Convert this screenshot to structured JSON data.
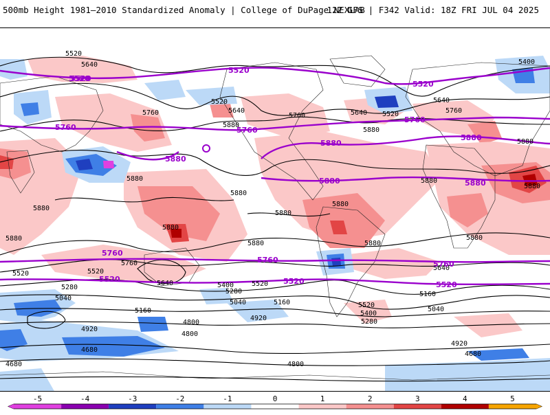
{
  "header": {
    "title_left": "500mb Height 1981–2010 Standardized Anomaly | College of DuPage NEXLAB",
    "title_right": "12Z GFS | F342 Valid: 18Z FRI JUL 04 2025"
  },
  "colors": {
    "neg5": "#e040e0",
    "neg4": "#8a00b0",
    "neg3": "#1f3fbf",
    "neg2": "#3f7fe6",
    "neg1": "#bcd9f7",
    "zero": "#ffffff",
    "pos1": "#fbc8c8",
    "pos2": "#f59090",
    "pos3": "#e24545",
    "pos4": "#b00000",
    "pos5": "#f7a500",
    "contour": "#000000",
    "highlight_contour": "#9a00cc"
  },
  "colorbar": {
    "ticks": [
      {
        "label": "-5",
        "value": -5
      },
      {
        "label": "-4",
        "value": -4
      },
      {
        "label": "-3",
        "value": -3
      },
      {
        "label": "-2",
        "value": -2
      },
      {
        "label": "-1",
        "value": -1
      },
      {
        "label": "0",
        "value": 0
      },
      {
        "label": "1",
        "value": 1
      },
      {
        "label": "2",
        "value": 2
      },
      {
        "label": "3",
        "value": 3
      },
      {
        "label": "4",
        "value": 4
      },
      {
        "label": "5",
        "value": 5
      }
    ]
  },
  "map": {
    "height_labels_black": [
      "5520",
      "5640",
      "5520",
      "5640",
      "5760",
      "5880",
      "5880",
      "5880",
      "5880",
      "5880",
      "5880",
      "5880",
      "5880",
      "5640",
      "5520",
      "5760",
      "5640",
      "5880",
      "5760",
      "5880",
      "5880",
      "5880",
      "5880",
      "5880",
      "5520",
      "5400",
      "5520",
      "5640",
      "5760",
      "5880",
      "5520",
      "5280",
      "5040",
      "4800",
      "5160",
      "4920",
      "4680",
      "4800",
      "4680",
      "5520",
      "5640",
      "5400",
      "5280",
      "5040",
      "5160",
      "4920",
      "5400",
      "5280",
      "5160",
      "5040",
      "4920",
      "4800",
      "4680"
    ],
    "height_labels_purple": [
      "5520",
      "5520",
      "5520",
      "5760",
      "5760",
      "5760",
      "5880",
      "5880",
      "5880",
      "5880",
      "5880",
      "5760",
      "5760",
      "5760",
      "5520",
      "5520",
      "5520",
      "5520"
    ]
  }
}
